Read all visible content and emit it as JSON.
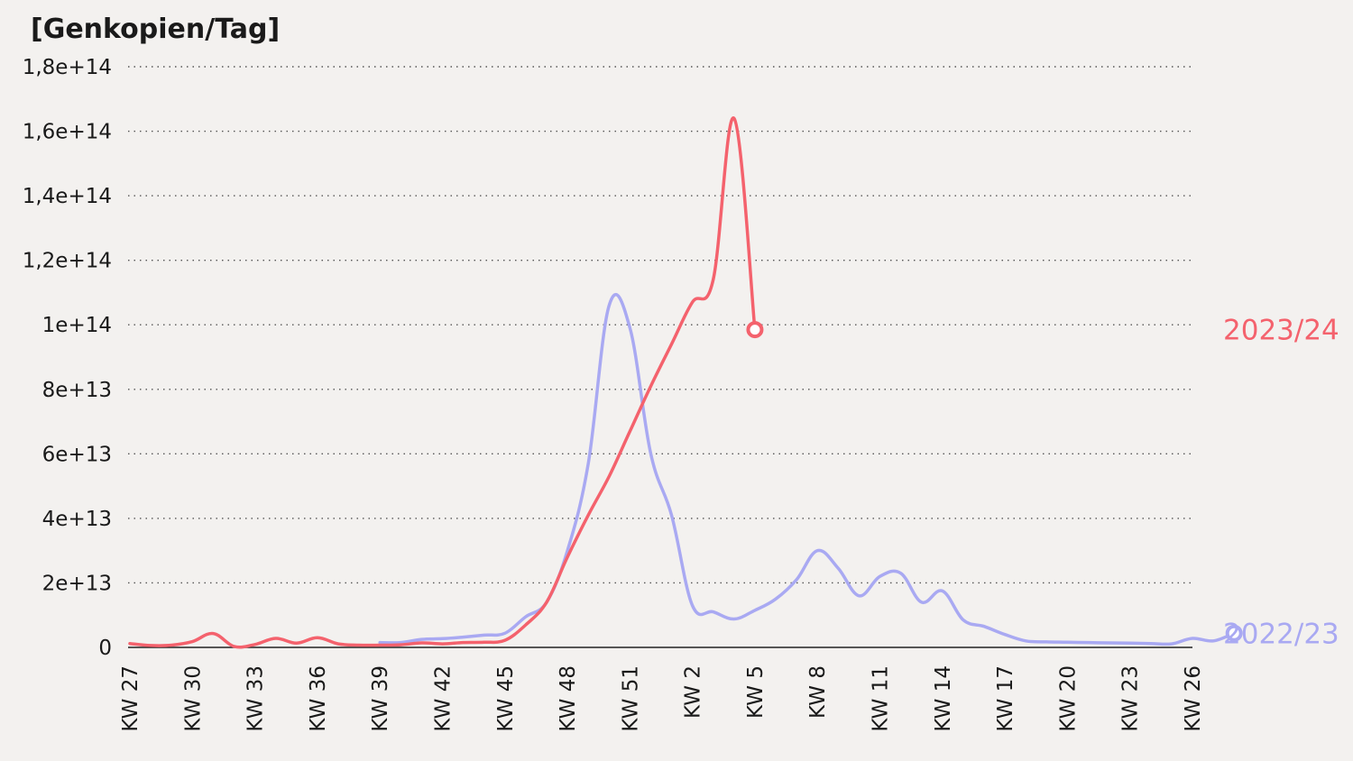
{
  "chart_data": {
    "type": "line",
    "ylabel": "[Genkopien/Tag]",
    "ylim": [
      0,
      180000000000000
    ],
    "yticks": [
      {
        "value": 0,
        "label": "0"
      },
      {
        "value": 20000000000000,
        "label": "2e+13"
      },
      {
        "value": 40000000000000,
        "label": "4e+13"
      },
      {
        "value": 60000000000000,
        "label": "6e+13"
      },
      {
        "value": 80000000000000,
        "label": "8e+13"
      },
      {
        "value": 100000000000000,
        "label": "1e+14"
      },
      {
        "value": 120000000000000,
        "label": "1,2e+14"
      },
      {
        "value": 140000000000000,
        "label": "1,4e+14"
      },
      {
        "value": 160000000000000,
        "label": "1,6e+14"
      },
      {
        "value": 180000000000000,
        "label": "1,8e+14"
      }
    ],
    "x_weeks": [
      "KW 27",
      "KW 28",
      "KW 29",
      "KW 30",
      "KW 31",
      "KW 32",
      "KW 33",
      "KW 34",
      "KW 35",
      "KW 36",
      "KW 37",
      "KW 38",
      "KW 39",
      "KW 40",
      "KW 41",
      "KW 42",
      "KW 43",
      "KW 44",
      "KW 45",
      "KW 46",
      "KW 47",
      "KW 48",
      "KW 49",
      "KW 50",
      "KW 51",
      "KW 52",
      "KW 1",
      "KW 2",
      "KW 3",
      "KW 4",
      "KW 5",
      "KW 6",
      "KW 7",
      "KW 8",
      "KW 9",
      "KW 10",
      "KW 11",
      "KW 12",
      "KW 13",
      "KW 14",
      "KW 15",
      "KW 16",
      "KW 17",
      "KW 18",
      "KW 19",
      "KW 20",
      "KW 21",
      "KW 22",
      "KW 23",
      "KW 24",
      "KW 25",
      "KW 26"
    ],
    "xtick_labels": [
      "KW 27",
      "KW 30",
      "KW 33",
      "KW 36",
      "KW 39",
      "KW 42",
      "KW 45",
      "KW 48",
      "KW 51",
      "KW 2",
      "KW 5",
      "KW 8",
      "KW 11",
      "KW 14",
      "KW 17",
      "KW 20",
      "KW 23",
      "KW 26"
    ],
    "series": [
      {
        "name": "2022/23",
        "color": "#a9a9f2",
        "start_week": "KW 39",
        "values": [
          1500000000000,
          1500000000000,
          2500000000000,
          2700000000000,
          3200000000000,
          3800000000000,
          4400000000000,
          9500000000000,
          14000000000000,
          30000000000000,
          57000000000000,
          106000000000000,
          99000000000000,
          60000000000000,
          41000000000000,
          13000000000000,
          11000000000000,
          8800000000000,
          11500000000000,
          15000000000000,
          21000000000000,
          30000000000000,
          24500000000000,
          16000000000000,
          22000000000000,
          23000000000000,
          14000000000000,
          17500000000000,
          8500000000000,
          6500000000000,
          4000000000000,
          2000000000000,
          1700000000000,
          1600000000000,
          1500000000000,
          1400000000000,
          1300000000000,
          1200000000000,
          1100000000000,
          2800000000000,
          2000000000000,
          4400000000000
        ]
      },
      {
        "name": "2023/24",
        "color": "#f4626d",
        "start_week": "KW 27",
        "values": [
          1200000000000,
          600000000000,
          700000000000,
          1800000000000,
          4300000000000,
          300000000000,
          900000000000,
          2800000000000,
          1300000000000,
          3000000000000,
          1100000000000,
          700000000000,
          700000000000,
          800000000000,
          1400000000000,
          1100000000000,
          1500000000000,
          1600000000000,
          2200000000000,
          7000000000000,
          14000000000000,
          28000000000000,
          41000000000000,
          53000000000000,
          67000000000000,
          81000000000000,
          94000000000000,
          107000000000000,
          114000000000000,
          164000000000000,
          98500000000000
        ]
      }
    ]
  }
}
